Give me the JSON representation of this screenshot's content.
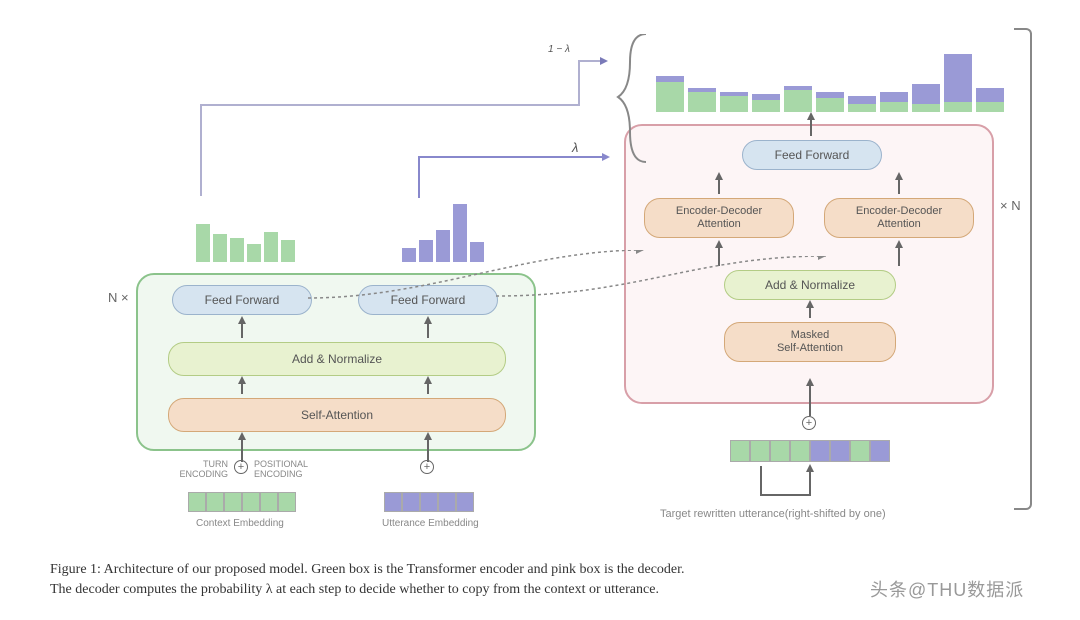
{
  "colors": {
    "green_box_border": "#8bc38b",
    "green_box_fill": "#f0f8f0",
    "pink_box_border": "#d89fa8",
    "pink_box_fill": "#fdf5f6",
    "feed_forward_fill": "#d6e4f0",
    "feed_forward_border": "#9bb3cc",
    "add_norm_fill": "#e8f2d0",
    "add_norm_border": "#b3cc85",
    "self_attn_fill": "#f5ddc8",
    "self_attn_border": "#d4a878",
    "enc_dec_fill": "#f5ddc8",
    "enc_dec_border": "#d4a878",
    "green_bar": "#a8d8a8",
    "purple_bar": "#9a9ad6",
    "green_embed": "#a8d8a8",
    "purple_embed": "#9a9ad6"
  },
  "encoder": {
    "n_label": "N ×",
    "feed_forward1": "Feed Forward",
    "feed_forward2": "Feed Forward",
    "add_norm": "Add & Normalize",
    "self_attn": "Self-Attention",
    "turn_enc": "TURN\nENCODING",
    "pos_enc": "POSITIONAL\nENCODING",
    "context_label": "Context Embedding",
    "utterance_label": "Utterance Embedding"
  },
  "decoder": {
    "n_label": "× N",
    "feed_forward": "Feed Forward",
    "enc_dec1": "Encoder-Decoder\nAttention",
    "enc_dec2": "Encoder-Decoder\nAttention",
    "add_norm": "Add & Normalize",
    "masked": "Masked\nSelf-Attention",
    "target_label": "Target rewritten utterance(right-shifted by one)"
  },
  "lambda": {
    "one_minus": "1 − λ",
    "lam": "λ"
  },
  "green_bars": [
    38,
    28,
    24,
    18,
    30,
    22
  ],
  "purple_bars": [
    14,
    22,
    32,
    58,
    20
  ],
  "output_bars": [
    {
      "g": 30,
      "p": 6
    },
    {
      "g": 20,
      "p": 4
    },
    {
      "g": 16,
      "p": 4
    },
    {
      "g": 12,
      "p": 6
    },
    {
      "g": 22,
      "p": 4
    },
    {
      "g": 14,
      "p": 6
    },
    {
      "g": 8,
      "p": 8
    },
    {
      "g": 10,
      "p": 10
    },
    {
      "g": 8,
      "p": 20
    },
    {
      "g": 10,
      "p": 48
    },
    {
      "g": 10,
      "p": 14
    }
  ],
  "context_embed_count": 6,
  "utterance_embed_count": 5,
  "target_embed": [
    "g",
    "g",
    "g",
    "g",
    "p",
    "p",
    "g",
    "p"
  ],
  "caption_line1": "Figure 1: Architecture of our proposed model. Green box is the Transformer encoder and pink box is the decoder.",
  "caption_line2": "The decoder computes the probability λ at each step to decide whether to copy from the context or utterance.",
  "watermark": "头条@THU数据派"
}
